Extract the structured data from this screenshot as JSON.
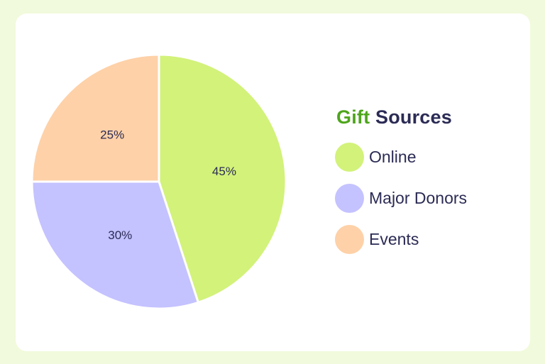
{
  "chart_data": {
    "type": "pie",
    "title_highlight": "Gift",
    "title_rest": "Sources",
    "slices": [
      {
        "label": "Online",
        "value": 45,
        "display": "45%",
        "color": "#d2f27a"
      },
      {
        "label": "Major Donors",
        "value": 30,
        "display": "30%",
        "color": "#c4c2ff"
      },
      {
        "label": "Events",
        "value": 25,
        "display": "25%",
        "color": "#fed1a8"
      }
    ],
    "legend_placement": "right"
  }
}
